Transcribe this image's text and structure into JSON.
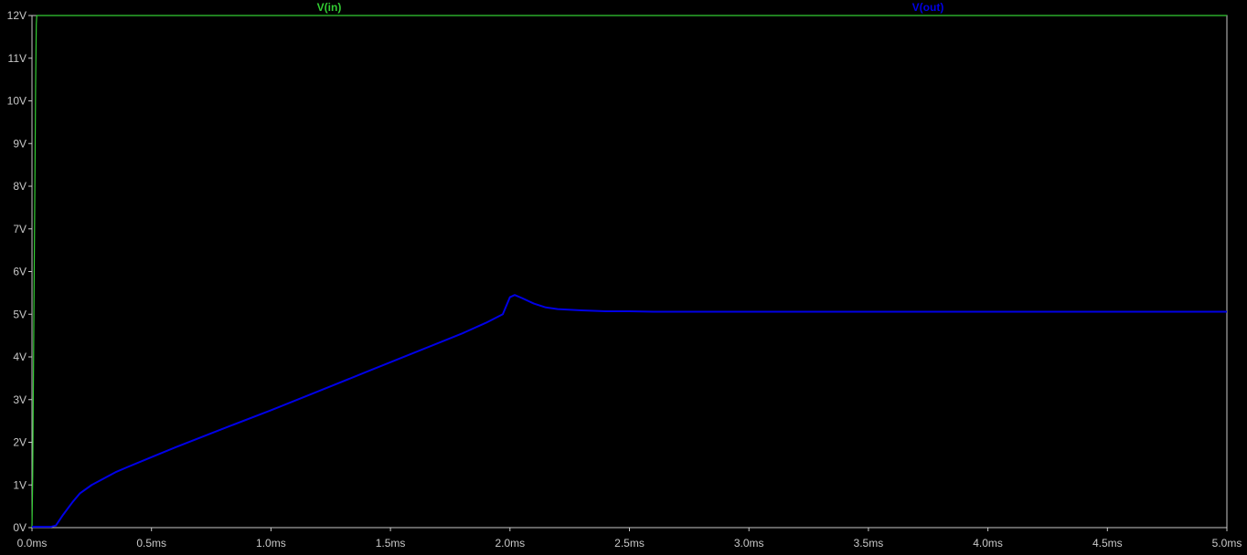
{
  "chart_data": {
    "type": "line",
    "title": "",
    "xlabel": "",
    "ylabel": "",
    "xlim": [
      0,
      5.0
    ],
    "ylim": [
      0,
      12
    ],
    "grid": false,
    "x_ticks": [
      {
        "value": 0.0,
        "label": "0.0ms"
      },
      {
        "value": 0.5,
        "label": "0.5ms"
      },
      {
        "value": 1.0,
        "label": "1.0ms"
      },
      {
        "value": 1.5,
        "label": "1.5ms"
      },
      {
        "value": 2.0,
        "label": "2.0ms"
      },
      {
        "value": 2.5,
        "label": "2.5ms"
      },
      {
        "value": 3.0,
        "label": "3.0ms"
      },
      {
        "value": 3.5,
        "label": "3.5ms"
      },
      {
        "value": 4.0,
        "label": "4.0ms"
      },
      {
        "value": 4.5,
        "label": "4.5ms"
      },
      {
        "value": 5.0,
        "label": "5.0ms"
      }
    ],
    "y_ticks": [
      {
        "value": 0,
        "label": "0V"
      },
      {
        "value": 1,
        "label": "1V"
      },
      {
        "value": 2,
        "label": "2V"
      },
      {
        "value": 3,
        "label": "3V"
      },
      {
        "value": 4,
        "label": "4V"
      },
      {
        "value": 5,
        "label": "5V"
      },
      {
        "value": 6,
        "label": "6V"
      },
      {
        "value": 7,
        "label": "7V"
      },
      {
        "value": 8,
        "label": "8V"
      },
      {
        "value": 9,
        "label": "9V"
      },
      {
        "value": 10,
        "label": "10V"
      },
      {
        "value": 11,
        "label": "11V"
      },
      {
        "value": 12,
        "label": "12V"
      }
    ],
    "series": [
      {
        "name": "V(in)",
        "color": "#33cc33",
        "x": [
          0.0,
          0.003,
          0.006,
          0.009,
          0.012,
          0.015,
          0.018,
          0.02,
          5.0
        ],
        "y": [
          0.0,
          1.2,
          3.5,
          5.8,
          8.0,
          10.3,
          11.8,
          12.0,
          12.0
        ]
      },
      {
        "name": "V(out)",
        "color": "#0000e6",
        "x": [
          0.0,
          0.08,
          0.1,
          0.13,
          0.17,
          0.2,
          0.25,
          0.3,
          0.35,
          0.4,
          0.5,
          0.6,
          0.8,
          1.0,
          1.2,
          1.4,
          1.6,
          1.8,
          1.9,
          1.97,
          2.0,
          2.02,
          2.05,
          2.1,
          2.15,
          2.2,
          2.3,
          2.4,
          2.5,
          2.6,
          3.0,
          3.5,
          4.0,
          4.5,
          5.0
        ],
        "y": [
          0.02,
          0.02,
          0.05,
          0.3,
          0.6,
          0.8,
          1.0,
          1.15,
          1.3,
          1.42,
          1.65,
          1.88,
          2.32,
          2.75,
          3.2,
          3.65,
          4.1,
          4.55,
          4.8,
          5.0,
          5.4,
          5.45,
          5.38,
          5.25,
          5.16,
          5.12,
          5.09,
          5.07,
          5.07,
          5.06,
          5.06,
          5.06,
          5.06,
          5.06,
          5.06
        ]
      }
    ]
  }
}
